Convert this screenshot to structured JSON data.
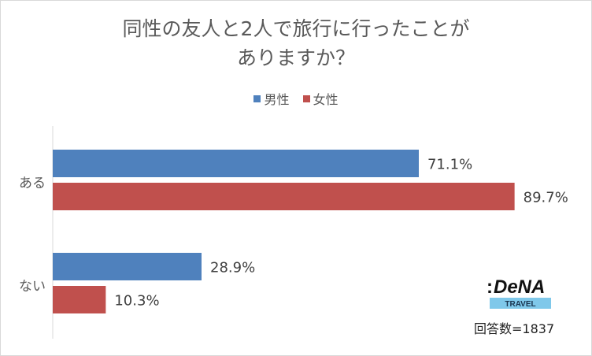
{
  "title_line1": "同性の友人と2人で旅行に行ったことが",
  "title_line2": "ありますか？",
  "note": "回答数=1837",
  "logo": {
    "brand": "DeNA",
    "sub": "TRAVEL",
    "mark": ":"
  },
  "colors": {
    "male": "#4f81bd",
    "female": "#c0504d",
    "axis": "#d9d9d9",
    "text": "#595959"
  },
  "chart_data": {
    "type": "bar",
    "orientation": "horizontal",
    "title": "同性の友人と2人で旅行に行ったことがありますか？",
    "categories": [
      "ある",
      "ない"
    ],
    "series": [
      {
        "name": "男性",
        "values": [
          71.1,
          28.9
        ],
        "labels": [
          "71.1%",
          "28.9%"
        ]
      },
      {
        "name": "女性",
        "values": [
          89.7,
          10.3
        ],
        "labels": [
          "89.7%",
          "10.3%"
        ]
      }
    ],
    "xlim": [
      0,
      100
    ],
    "grid": false,
    "legend": "top"
  }
}
